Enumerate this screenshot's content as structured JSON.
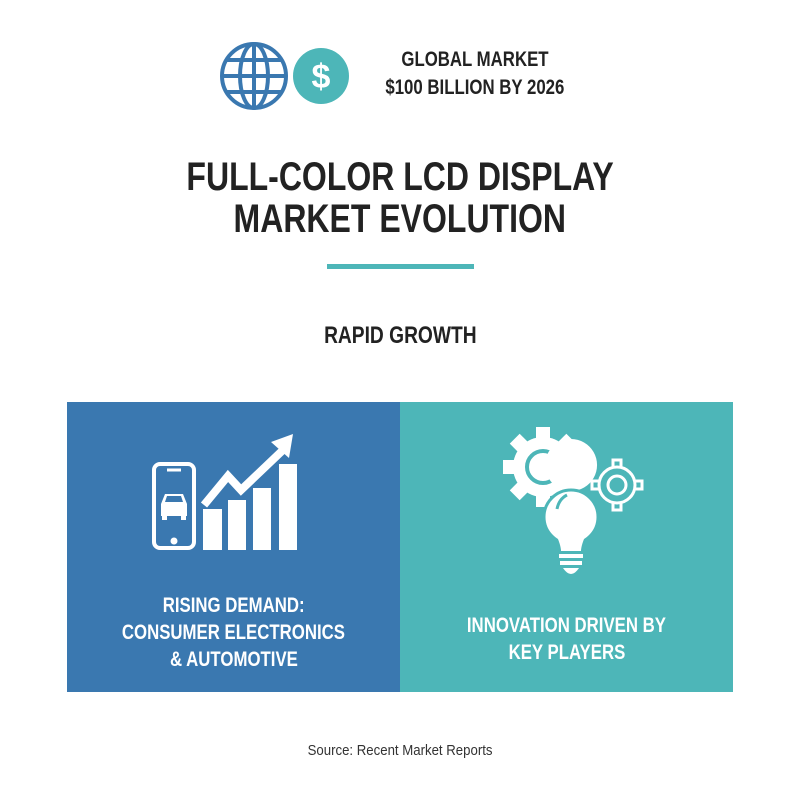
{
  "header": {
    "icons": [
      "globe-icon",
      "dollar-icon"
    ],
    "line1": "GLOBAL MARKET",
    "line2": "$100 BILLION BY 2026"
  },
  "title": {
    "line1": "FULL-COLOR LCD DISPLAY",
    "line2": "MARKET EVOLUTION"
  },
  "subtitle": "RAPID GROWTH",
  "panels": [
    {
      "icons": [
        "smartphone-car-icon",
        "growth-bar-chart-icon"
      ],
      "lines": [
        "RISING DEMAND:",
        "CONSUMER ELECTRONICS",
        "& AUTOMOTIVE"
      ]
    },
    {
      "icons": [
        "gears-icon",
        "lightbulb-icon"
      ],
      "lines": [
        "INNOVATION DRIVEN BY",
        "KEY PLAYERS"
      ]
    }
  ],
  "source": "Source: Recent Market Reports",
  "colors": {
    "blue": "#3A78B0",
    "teal": "#4DB6B8",
    "text": "#222222"
  }
}
